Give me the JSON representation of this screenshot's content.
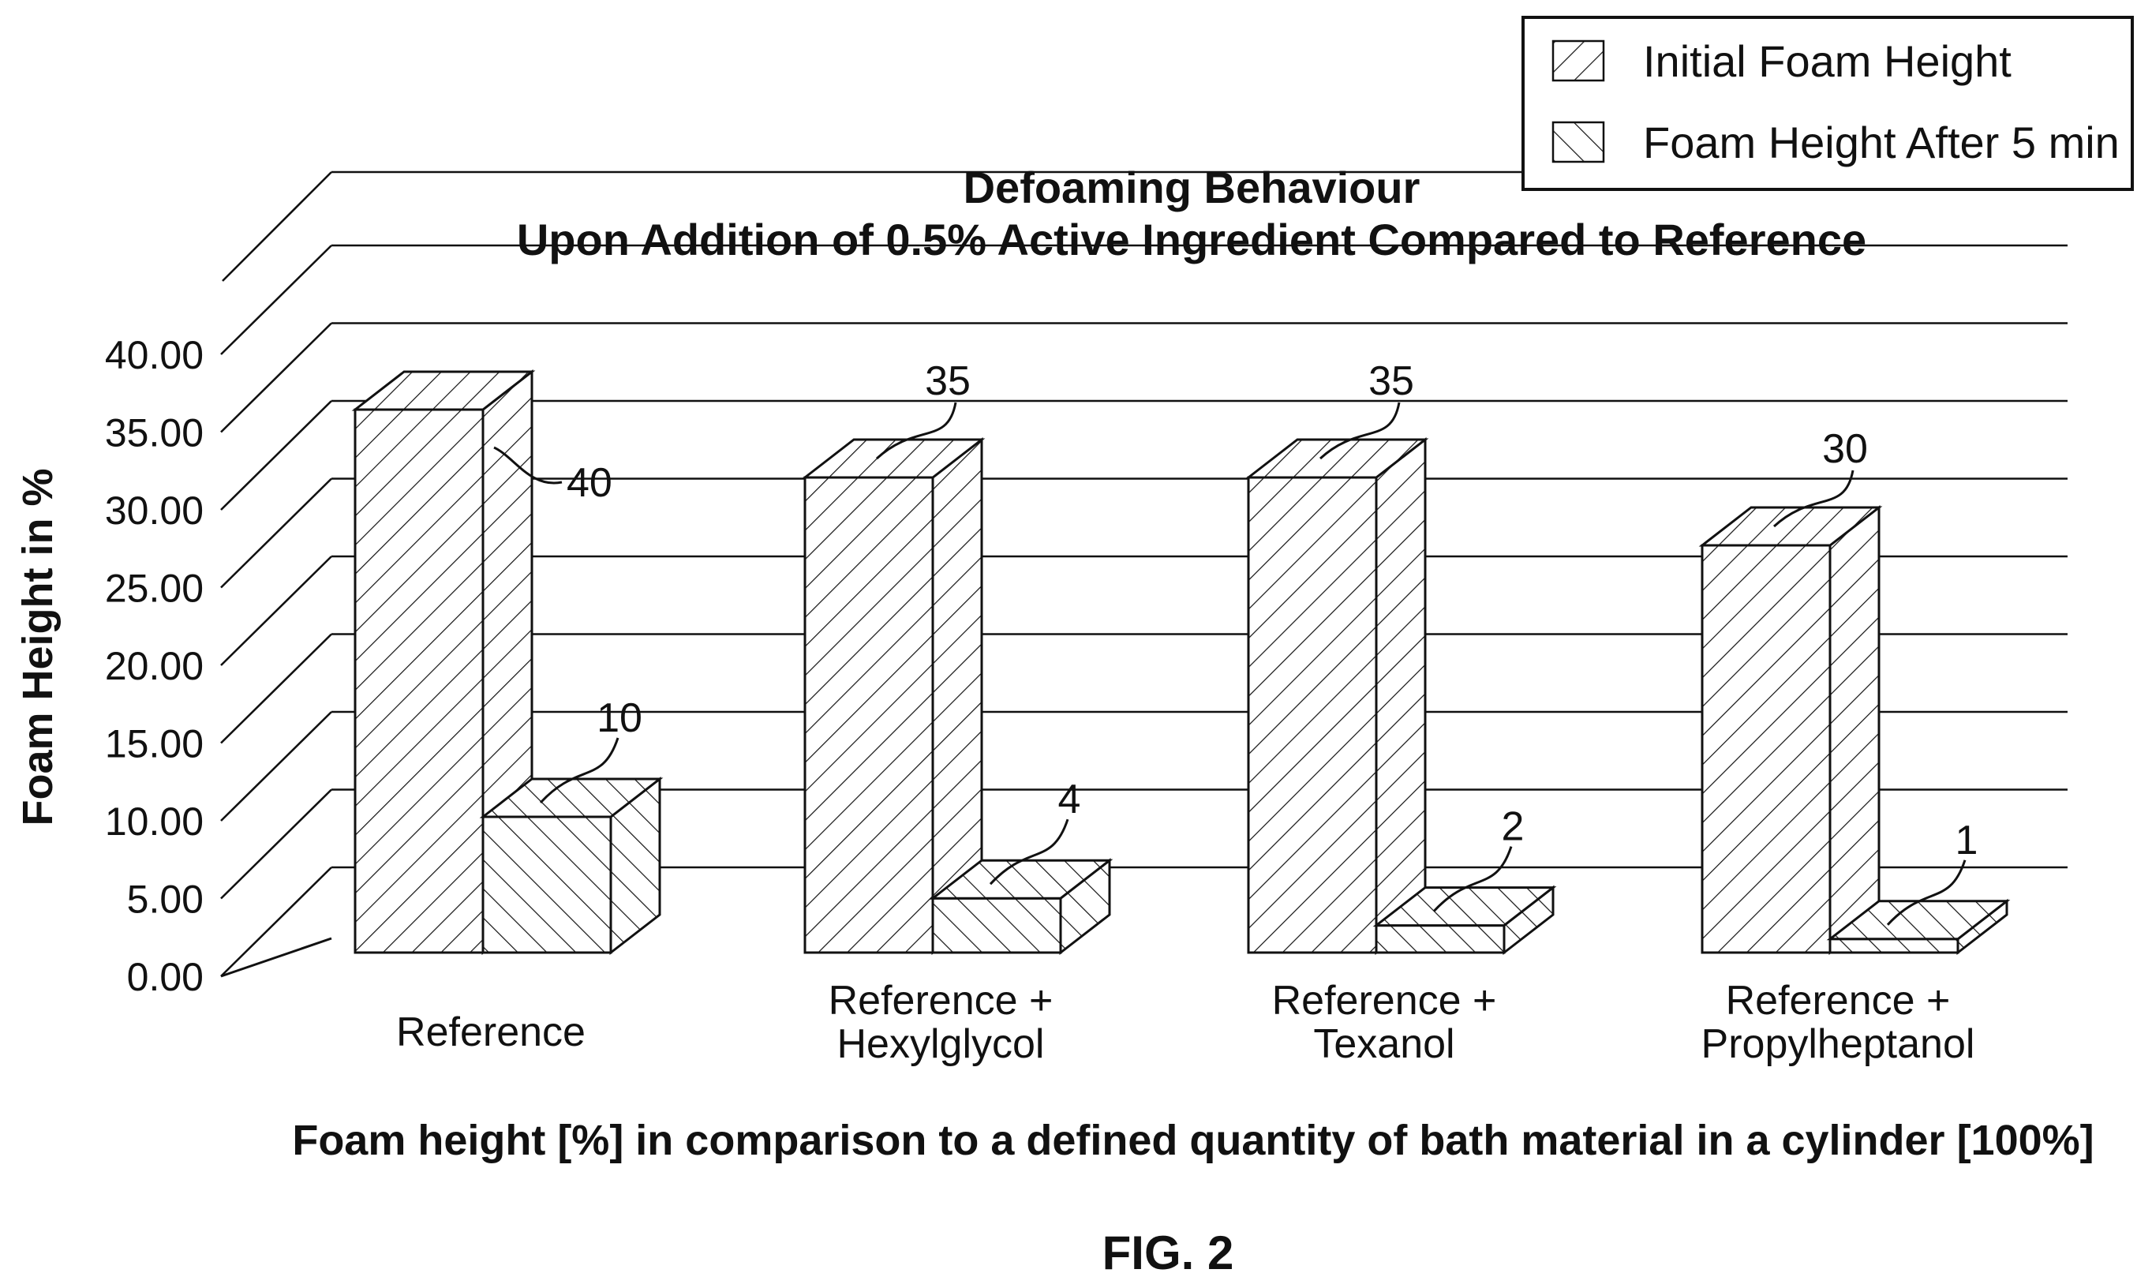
{
  "chart_data": {
    "type": "bar",
    "title": "Defoaming Behaviour",
    "subtitle": "Upon Addition of 0.5% Active Ingredient Compared to Reference",
    "ylabel": "Foam Height in %",
    "xlabel": "Foam height [%] in comparison to a defined quantity of bath material in a cylinder [100%]",
    "categories": [
      [
        "Reference"
      ],
      [
        "Reference +",
        "Hexylglycol"
      ],
      [
        "Reference +",
        "Texanol"
      ],
      [
        "Reference +",
        "Propylheptanol"
      ]
    ],
    "series": [
      {
        "name": "Initial Foam Height",
        "values": [
          40,
          35,
          35,
          30
        ],
        "labels": [
          "40",
          "35",
          "35",
          "30"
        ]
      },
      {
        "name": "Foam Height After 5 min",
        "values": [
          10,
          4,
          2,
          1
        ],
        "labels": [
          "10",
          "4",
          "2",
          "1"
        ]
      }
    ],
    "ylim": [
      0,
      40
    ],
    "yticks": [
      "0.00",
      "5.00",
      "10.00",
      "15.00",
      "20.00",
      "25.00",
      "30.00",
      "35.00",
      "40.00"
    ],
    "grid": true,
    "legend_position": "top-right",
    "style": "3d-hatched"
  },
  "caption": "FIG. 2"
}
